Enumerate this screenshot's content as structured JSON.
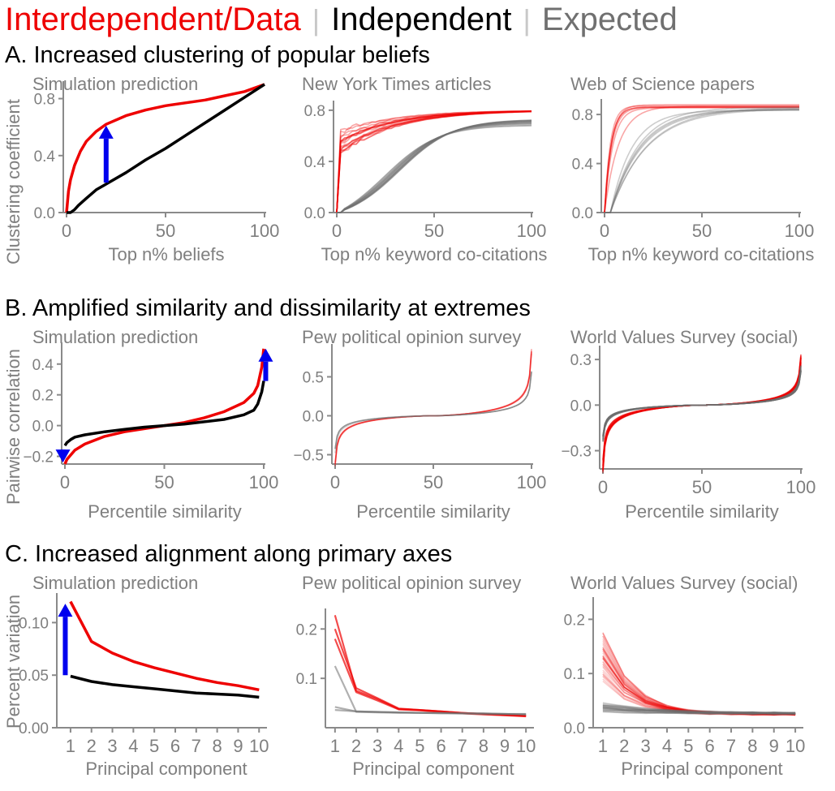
{
  "legend": {
    "interdependent": "Interdependent/Data",
    "independent": "Independent",
    "expected": "Expected",
    "colors": {
      "interdependent": "#ee0000",
      "independent": "#000000",
      "expected": "#707070",
      "arrow": "#0000ee"
    }
  },
  "sections": {
    "A": "A. Increased clustering of popular beliefs",
    "B": "B. Amplified similarity and dissimilarity at extremes",
    "C": "C. Increased alignment along primary axes"
  },
  "ylabels": {
    "A": "Clustering coefficient",
    "B": "Pairwise correlation",
    "C": "Percent variation"
  },
  "panels": {
    "A1": {
      "title": "Simulation prediction",
      "xlabel": "Top n% beliefs"
    },
    "A2": {
      "title": "New York Times articles",
      "xlabel": "Top n% keyword co-citations"
    },
    "A3": {
      "title": "Web of Science papers",
      "xlabel": "Top n% keyword co-citations"
    },
    "B1": {
      "title": "Simulation prediction",
      "xlabel": "Percentile similarity"
    },
    "B2": {
      "title": "Pew political opinion survey",
      "xlabel": "Percentile similarity"
    },
    "B3": {
      "title": "World Values Survey (social)",
      "xlabel": "Percentile similarity"
    },
    "C1": {
      "title": "Simulation prediction",
      "xlabel": "Principal component"
    },
    "C2": {
      "title": "Pew political opinion survey",
      "xlabel": "Principal component"
    },
    "C3": {
      "title": "World Values Survey (social)",
      "xlabel": "Principal component"
    }
  },
  "chart_data": [
    {
      "id": "A1",
      "type": "line",
      "xlim": [
        0,
        100
      ],
      "ylim": [
        0,
        0.9
      ],
      "xticks": [
        "0",
        "50",
        "100"
      ],
      "yticks": [
        "0.0",
        "0.4",
        "0.8"
      ],
      "series": [
        {
          "group": "interdependent",
          "x": [
            0,
            1,
            2,
            4,
            7,
            10,
            15,
            20,
            30,
            40,
            50,
            60,
            70,
            80,
            90,
            100
          ],
          "y": [
            0,
            0.15,
            0.23,
            0.33,
            0.43,
            0.5,
            0.57,
            0.62,
            0.68,
            0.72,
            0.75,
            0.77,
            0.79,
            0.82,
            0.85,
            0.9
          ]
        },
        {
          "group": "independent",
          "x": [
            0,
            2,
            4,
            6,
            10,
            15,
            20,
            30,
            40,
            50,
            60,
            70,
            80,
            90,
            100
          ],
          "y": [
            0,
            0,
            0.02,
            0.05,
            0.1,
            0.16,
            0.2,
            0.28,
            0.37,
            0.45,
            0.54,
            0.63,
            0.72,
            0.81,
            0.9
          ]
        }
      ],
      "arrows": [
        {
          "x": 20,
          "from": 0.21,
          "to": 0.61
        }
      ]
    },
    {
      "id": "A2",
      "type": "line",
      "xlim": [
        0,
        100
      ],
      "ylim": [
        0,
        0.85
      ],
      "xticks": [
        "0",
        "50",
        "100"
      ],
      "yticks": [
        "0.0",
        "0.4",
        "0.8"
      ],
      "bands": [
        {
          "group": "interdependent",
          "count": 18,
          "shape": "jump",
          "y0": 0.55,
          "y0spread": 0.12,
          "top": 0.8,
          "k": 0.035
        },
        {
          "group": "expected",
          "count": 18,
          "shape": "sigmoid",
          "x0": 28,
          "x0spread": 5,
          "top": 0.8,
          "k": 0.045
        }
      ]
    },
    {
      "id": "A3",
      "type": "line",
      "xlim": [
        0,
        100
      ],
      "ylim": [
        0,
        0.9
      ],
      "xticks": [
        "0",
        "50",
        "100"
      ],
      "yticks": [
        "0.0",
        "0.4",
        "0.8"
      ],
      "bands": [
        {
          "group": "interdependent",
          "count": 7,
          "shape": "sat",
          "top": 0.88,
          "tau": 5,
          "tauspread": 2.2,
          "start": 0
        },
        {
          "group": "expected",
          "count": 7,
          "shape": "sat",
          "top": 0.86,
          "tau": 14,
          "tauspread": 5,
          "start": 3
        }
      ]
    },
    {
      "id": "B1",
      "type": "line",
      "xlim": [
        0,
        100
      ],
      "ylim": [
        -0.25,
        0.52
      ],
      "xticks": [
        "0",
        "50",
        "100"
      ],
      "yticks": [
        "-0.2",
        "0.0",
        "0.2",
        "0.4"
      ],
      "series": [
        {
          "group": "interdependent",
          "x": [
            0,
            1,
            3,
            5,
            10,
            20,
            30,
            40,
            50,
            60,
            70,
            80,
            90,
            95,
            97,
            99,
            100
          ],
          "y": [
            -0.25,
            -0.22,
            -0.19,
            -0.16,
            -0.12,
            -0.07,
            -0.04,
            -0.02,
            0,
            0.02,
            0.05,
            0.09,
            0.15,
            0.21,
            0.26,
            0.38,
            0.5
          ]
        },
        {
          "group": "independent",
          "x": [
            0,
            1,
            3,
            5,
            10,
            20,
            30,
            40,
            50,
            60,
            70,
            80,
            90,
            95,
            97,
            99,
            100
          ],
          "y": [
            -0.13,
            -0.11,
            -0.09,
            -0.075,
            -0.06,
            -0.04,
            -0.025,
            -0.01,
            0,
            0.01,
            0.025,
            0.04,
            0.07,
            0.1,
            0.14,
            0.22,
            0.29
          ]
        }
      ],
      "arrows": [
        {
          "x": -1,
          "from": -0.16,
          "to": -0.24
        },
        {
          "x": 101,
          "from": 0.29,
          "to": 0.5
        }
      ]
    },
    {
      "id": "B2",
      "type": "line",
      "xlim": [
        0,
        100
      ],
      "ylim": [
        -0.62,
        0.88
      ],
      "xticks": [
        "0",
        "50",
        "100"
      ],
      "yticks": [
        "-0.5",
        "0.0",
        "0.5"
      ],
      "bands": [
        {
          "group": "interdependent",
          "count": 4,
          "shape": "tanh",
          "lo": -0.6,
          "hi": 0.82,
          "spread": 0.04
        },
        {
          "group": "expected",
          "count": 4,
          "shape": "tanh",
          "lo": -0.45,
          "hi": 0.6,
          "spread": 0.04
        }
      ]
    },
    {
      "id": "B3",
      "type": "line",
      "xlim": [
        0,
        100
      ],
      "ylim": [
        -0.42,
        0.37
      ],
      "xticks": [
        "0",
        "50",
        "100"
      ],
      "yticks": [
        "-0.3",
        "0.0",
        "0.3"
      ],
      "bands": [
        {
          "group": "interdependent",
          "count": 40,
          "shape": "tanh",
          "lo": -0.4,
          "hi": 0.3,
          "spread": 0.06
        },
        {
          "group": "expected",
          "count": 40,
          "shape": "tanh",
          "lo": -0.22,
          "hi": 0.24,
          "spread": 0.05
        }
      ]
    },
    {
      "id": "C1",
      "type": "line",
      "xlim": [
        0.5,
        10.3
      ],
      "ylim": [
        0,
        0.125
      ],
      "xticks": [
        "1",
        "2",
        "3",
        "4",
        "5",
        "6",
        "7",
        "8",
        "9",
        "10"
      ],
      "yticks": [
        "0.00",
        "0.05",
        "0.10"
      ],
      "series": [
        {
          "group": "interdependent",
          "x": [
            1,
            2,
            3,
            4,
            5,
            6,
            7,
            8,
            9,
            10
          ],
          "y": [
            0.12,
            0.082,
            0.071,
            0.063,
            0.057,
            0.052,
            0.047,
            0.043,
            0.04,
            0.036
          ]
        },
        {
          "group": "independent",
          "x": [
            1,
            2,
            3,
            4,
            5,
            6,
            7,
            8,
            9,
            10
          ],
          "y": [
            0.049,
            0.044,
            0.041,
            0.039,
            0.037,
            0.035,
            0.033,
            0.032,
            0.031,
            0.029
          ]
        }
      ],
      "arrows": [
        {
          "x": 0.75,
          "from": 0.05,
          "to": 0.118
        }
      ]
    },
    {
      "id": "C2",
      "type": "line",
      "xlim": [
        0.7,
        10.3
      ],
      "ylim": [
        0,
        0.235
      ],
      "xticks": [
        "1",
        "2",
        "3",
        "4",
        "5",
        "6",
        "7",
        "8",
        "9",
        "10"
      ],
      "yticks": [
        "0.1",
        "0.2"
      ],
      "series": [
        {
          "group": "interdependent",
          "x": [
            1,
            2,
            3,
            4,
            5,
            6,
            7,
            8,
            9,
            10
          ],
          "y": [
            0.228,
            0.075,
            0.058,
            0.038,
            0.036,
            0.033,
            0.03,
            0.028,
            0.026,
            0.024
          ]
        },
        {
          "group": "interdependent",
          "x": [
            1,
            2,
            3,
            4,
            5,
            6,
            7,
            8,
            9,
            10
          ],
          "y": [
            0.2,
            0.08,
            0.06,
            0.039,
            0.036,
            0.033,
            0.03,
            0.028,
            0.026,
            0.024
          ]
        },
        {
          "group": "interdependent",
          "x": [
            1,
            2,
            3,
            4,
            5,
            6,
            7,
            8,
            9,
            10
          ],
          "y": [
            0.18,
            0.072,
            0.055,
            0.037,
            0.035,
            0.032,
            0.029,
            0.027,
            0.025,
            0.023
          ]
        },
        {
          "group": "expected",
          "x": [
            1,
            2,
            3,
            4,
            5,
            6,
            7,
            8,
            9,
            10
          ],
          "y": [
            0.125,
            0.032,
            0.031,
            0.03,
            0.03,
            0.029,
            0.029,
            0.028,
            0.028,
            0.027
          ]
        },
        {
          "group": "expected",
          "x": [
            1,
            2,
            3,
            4,
            5,
            6,
            7,
            8,
            9,
            10
          ],
          "y": [
            0.042,
            0.033,
            0.032,
            0.031,
            0.03,
            0.03,
            0.029,
            0.029,
            0.028,
            0.028
          ]
        },
        {
          "group": "expected",
          "x": [
            1,
            2,
            3,
            4,
            5,
            6,
            7,
            8,
            9,
            10
          ],
          "y": [
            0.036,
            0.033,
            0.032,
            0.031,
            0.03,
            0.03,
            0.029,
            0.029,
            0.028,
            0.027
          ]
        }
      ]
    },
    {
      "id": "C3",
      "type": "line",
      "xlim": [
        0.7,
        10.3
      ],
      "ylim": [
        0,
        0.235
      ],
      "xticks": [
        "1",
        "2",
        "3",
        "4",
        "5",
        "6",
        "7",
        "8",
        "9",
        "10"
      ],
      "yticks": [
        "0.0",
        "0.1",
        "0.2"
      ],
      "bands": [
        {
          "group": "interdependent",
          "count": 40,
          "shape": "decay",
          "first": 0.13,
          "firstspread": 0.045,
          "tail": 0.025,
          "rate": 0.75
        },
        {
          "group": "expected",
          "count": 40,
          "shape": "decay",
          "first": 0.038,
          "firstspread": 0.008,
          "tail": 0.026,
          "rate": 0.35
        }
      ]
    }
  ]
}
